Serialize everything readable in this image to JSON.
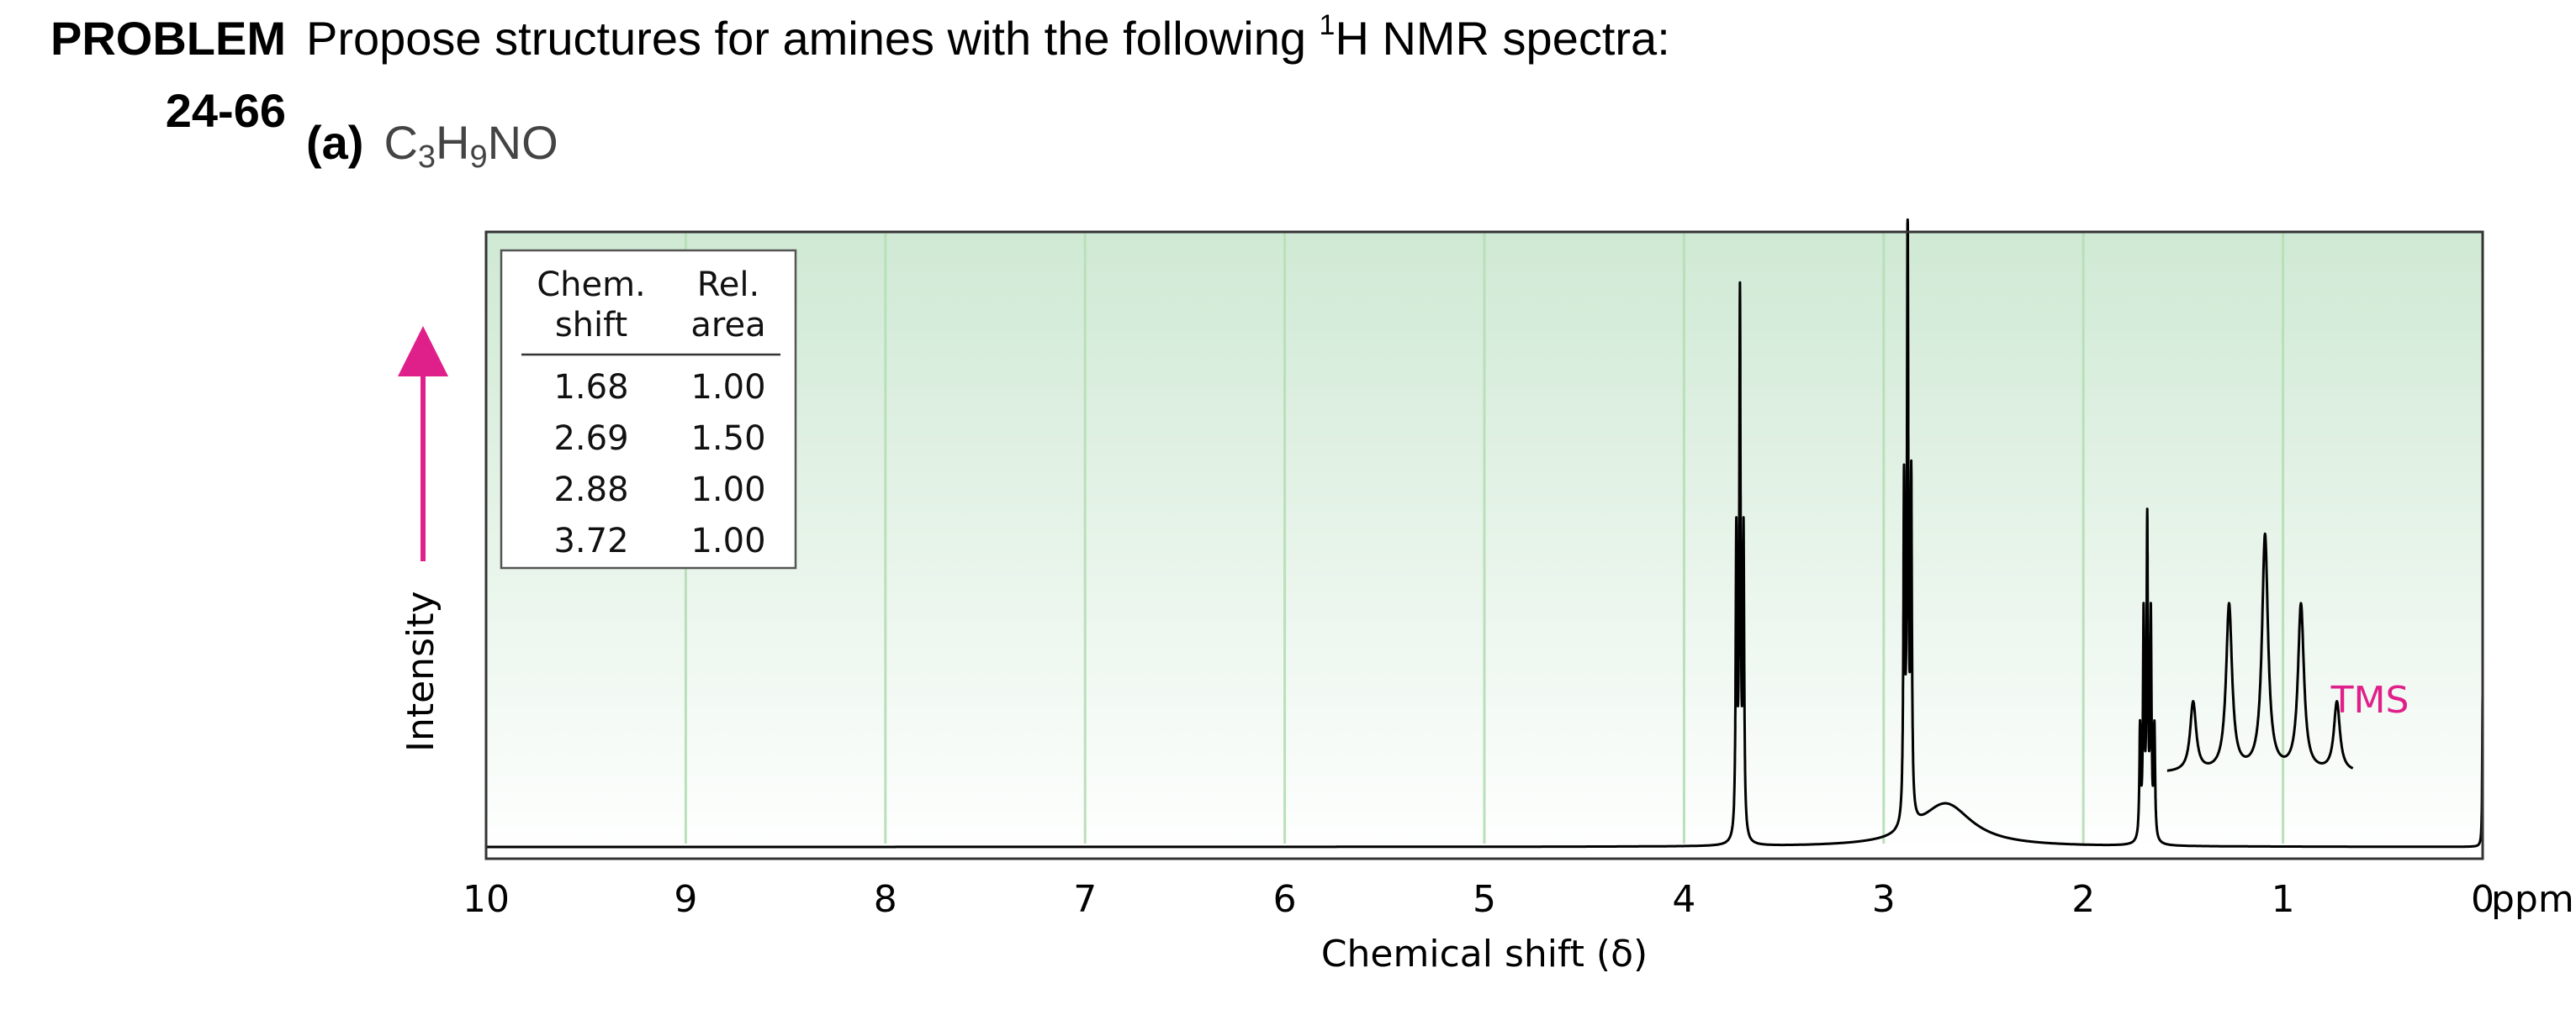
{
  "problem": {
    "label": "PROBLEM",
    "number": "24-66",
    "prompt_before": "Propose structures for amines with the following ",
    "prompt_sup": "1",
    "prompt_after": "H NMR spectra:",
    "part_letter": "(a)",
    "formula": {
      "c": "C",
      "c_sub": "3",
      "h": "H",
      "h_sub": "9",
      "rest": "NO"
    }
  },
  "chart_data": {
    "type": "line",
    "title": "",
    "xlabel": "Chemical shift (δ)",
    "ylabel": "Intensity",
    "x_unit": "ppm",
    "xlim": [
      10,
      0
    ],
    "x_reversed": true,
    "x_ticks": [
      10,
      9,
      8,
      7,
      6,
      5,
      4,
      3,
      2,
      1,
      0
    ],
    "grid": "vertical lines at each integer ppm",
    "background": "green-to-white vertical gradient",
    "colors": {
      "grid": "#b9e0b9",
      "trace": "#000000",
      "accent": "#e0208a",
      "bg_top": "#cfe9d4",
      "bg_bottom": "#ffffff"
    },
    "integration_table": {
      "headers": [
        [
          "Chem.",
          "shift"
        ],
        [
          "Rel.",
          "area"
        ]
      ],
      "rows": [
        [
          "1.68",
          "1.00"
        ],
        [
          "2.69",
          "1.50"
        ],
        [
          "2.88",
          "1.00"
        ],
        [
          "3.72",
          "1.00"
        ]
      ]
    },
    "peaks": [
      {
        "delta": 3.72,
        "multiplicity": "triplet",
        "relative_height": 0.87
      },
      {
        "delta": 2.88,
        "multiplicity": "triplet",
        "relative_height": 0.97
      },
      {
        "delta": 2.69,
        "multiplicity": "broad singlet",
        "relative_height": 0.07
      },
      {
        "delta": 1.68,
        "multiplicity": "quintet",
        "relative_height": 0.51
      },
      {
        "delta": 0.0,
        "label": "TMS",
        "relative_height": 0.25
      }
    ],
    "inset": {
      "of_delta": 1.68,
      "multiplicity": "quintet",
      "line_heights": [
        0.25,
        0.6,
        0.85,
        0.6,
        0.25
      ]
    },
    "tms_label": "TMS"
  }
}
